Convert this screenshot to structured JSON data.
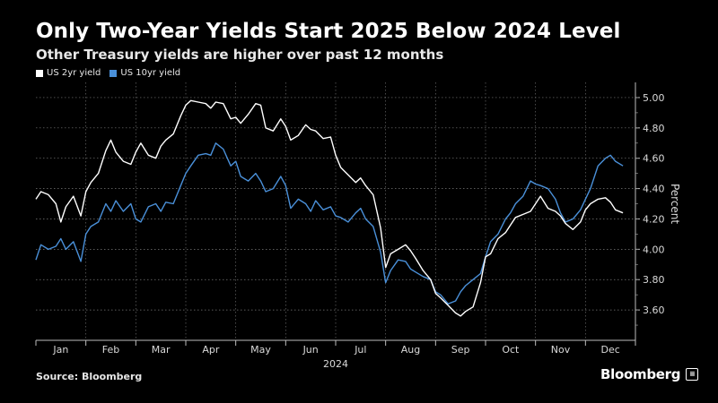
{
  "header": {
    "title": "Only Two-Year Yields Start 2025 Below 2024 Level",
    "subtitle": "Other Treasury yields are higher over past 12 months"
  },
  "footer": {
    "source": "Source: Bloomberg",
    "brand": "Bloomberg"
  },
  "chart_data": {
    "type": "line",
    "title": "Only Two-Year Yields Start 2025 Below 2024 Level",
    "subtitle": "Other Treasury yields are higher over past 12 months",
    "xlabel": "2024",
    "ylabel": "Percent",
    "ylim": [
      3.4,
      5.1
    ],
    "yticks": [
      3.6,
      3.8,
      4.0,
      4.2,
      4.4,
      4.6,
      4.8,
      5.0
    ],
    "ytick_labels": [
      "3.60",
      "3.80",
      "4.00",
      "4.20",
      "4.40",
      "4.60",
      "4.80",
      "5.00"
    ],
    "xlim": [
      0,
      12
    ],
    "month_labels": [
      "Jan",
      "Feb",
      "Mar",
      "Apr",
      "May",
      "Jun",
      "Jul",
      "Aug",
      "Sep",
      "Oct",
      "Nov",
      "Dec"
    ],
    "year_label": "2024",
    "grid": true,
    "legend_position": "top-left",
    "series": [
      {
        "name": "US 2yr yield",
        "color": "#ffffff",
        "x": [
          0.0,
          0.1,
          0.25,
          0.4,
          0.5,
          0.6,
          0.75,
          0.9,
          1.0,
          1.1,
          1.25,
          1.4,
          1.5,
          1.6,
          1.75,
          1.9,
          2.0,
          2.1,
          2.25,
          2.4,
          2.5,
          2.6,
          2.75,
          2.9,
          3.0,
          3.1,
          3.25,
          3.4,
          3.5,
          3.6,
          3.75,
          3.9,
          4.0,
          4.1,
          4.25,
          4.4,
          4.5,
          4.6,
          4.75,
          4.9,
          5.0,
          5.1,
          5.25,
          5.4,
          5.5,
          5.6,
          5.75,
          5.9,
          6.0,
          6.1,
          6.25,
          6.4,
          6.5,
          6.6,
          6.75,
          6.9,
          7.0,
          7.1,
          7.25,
          7.4,
          7.5,
          7.6,
          7.75,
          7.9,
          8.0,
          8.1,
          8.25,
          8.4,
          8.5,
          8.6,
          8.75,
          8.9,
          9.0,
          9.1,
          9.25,
          9.4,
          9.5,
          9.6,
          9.75,
          9.9,
          10.0,
          10.1,
          10.25,
          10.4,
          10.5,
          10.6,
          10.75,
          10.9,
          11.0,
          11.1,
          11.25,
          11.4,
          11.5,
          11.6,
          11.75
        ],
        "values": [
          4.33,
          4.38,
          4.36,
          4.3,
          4.18,
          4.28,
          4.35,
          4.22,
          4.38,
          4.44,
          4.5,
          4.65,
          4.72,
          4.64,
          4.58,
          4.56,
          4.64,
          4.7,
          4.62,
          4.6,
          4.68,
          4.72,
          4.76,
          4.88,
          4.95,
          4.98,
          4.97,
          4.96,
          4.93,
          4.97,
          4.96,
          4.86,
          4.87,
          4.83,
          4.89,
          4.96,
          4.95,
          4.8,
          4.78,
          4.86,
          4.81,
          4.72,
          4.75,
          4.82,
          4.79,
          4.78,
          4.73,
          4.74,
          4.62,
          4.54,
          4.49,
          4.44,
          4.47,
          4.42,
          4.36,
          4.14,
          3.88,
          3.97,
          4.0,
          4.03,
          3.99,
          3.94,
          3.86,
          3.8,
          3.71,
          3.68,
          3.63,
          3.58,
          3.56,
          3.59,
          3.62,
          3.78,
          3.95,
          3.97,
          4.07,
          4.11,
          4.16,
          4.21,
          4.23,
          4.25,
          4.3,
          4.35,
          4.27,
          4.25,
          4.22,
          4.17,
          4.13,
          4.18,
          4.26,
          4.3,
          4.33,
          4.34,
          4.31,
          4.26,
          4.24
        ]
      },
      {
        "name": "US 10yr yield",
        "color": "#4a90d9",
        "x": [
          0.0,
          0.1,
          0.25,
          0.4,
          0.5,
          0.6,
          0.75,
          0.9,
          1.0,
          1.1,
          1.25,
          1.4,
          1.5,
          1.6,
          1.75,
          1.9,
          2.0,
          2.1,
          2.25,
          2.4,
          2.5,
          2.6,
          2.75,
          2.9,
          3.0,
          3.1,
          3.25,
          3.4,
          3.5,
          3.6,
          3.75,
          3.9,
          4.0,
          4.1,
          4.25,
          4.4,
          4.5,
          4.6,
          4.75,
          4.9,
          5.0,
          5.1,
          5.25,
          5.4,
          5.5,
          5.6,
          5.75,
          5.9,
          6.0,
          6.1,
          6.25,
          6.4,
          6.5,
          6.6,
          6.75,
          6.9,
          7.0,
          7.1,
          7.25,
          7.4,
          7.5,
          7.6,
          7.75,
          7.9,
          8.0,
          8.1,
          8.25,
          8.4,
          8.5,
          8.6,
          8.75,
          8.9,
          9.0,
          9.1,
          9.25,
          9.4,
          9.5,
          9.6,
          9.75,
          9.9,
          10.0,
          10.1,
          10.25,
          10.4,
          10.5,
          10.6,
          10.75,
          10.9,
          11.0,
          11.1,
          11.25,
          11.4,
          11.5,
          11.6,
          11.75
        ],
        "values": [
          3.93,
          4.03,
          4.0,
          4.02,
          4.07,
          4.0,
          4.05,
          3.92,
          4.1,
          4.15,
          4.18,
          4.3,
          4.25,
          4.32,
          4.25,
          4.3,
          4.2,
          4.18,
          4.28,
          4.3,
          4.25,
          4.31,
          4.3,
          4.42,
          4.5,
          4.55,
          4.62,
          4.63,
          4.62,
          4.7,
          4.66,
          4.55,
          4.58,
          4.48,
          4.45,
          4.5,
          4.45,
          4.38,
          4.4,
          4.48,
          4.42,
          4.27,
          4.33,
          4.3,
          4.25,
          4.32,
          4.26,
          4.28,
          4.22,
          4.21,
          4.18,
          4.24,
          4.27,
          4.2,
          4.15,
          3.98,
          3.78,
          3.86,
          3.93,
          3.92,
          3.87,
          3.85,
          3.82,
          3.8,
          3.72,
          3.7,
          3.64,
          3.66,
          3.72,
          3.76,
          3.8,
          3.84,
          3.95,
          4.05,
          4.1,
          4.2,
          4.24,
          4.3,
          4.35,
          4.45,
          4.43,
          4.42,
          4.4,
          4.33,
          4.24,
          4.18,
          4.2,
          4.26,
          4.33,
          4.4,
          4.55,
          4.6,
          4.62,
          4.58,
          4.55
        ]
      }
    ]
  }
}
